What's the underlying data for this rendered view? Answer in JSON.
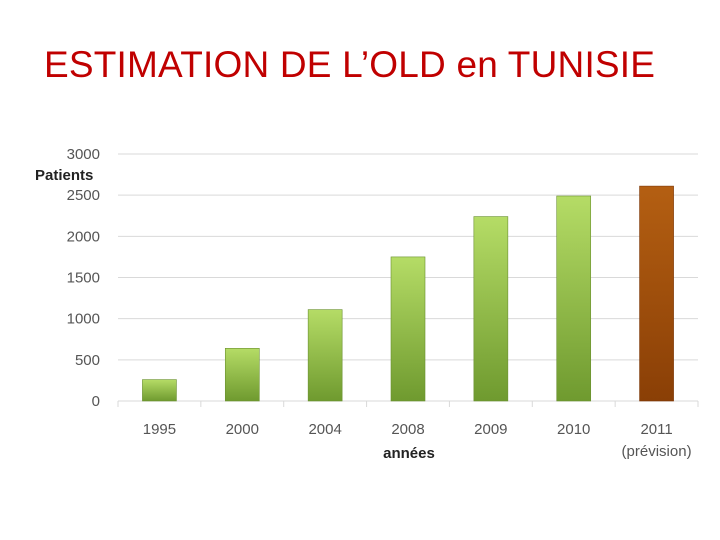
{
  "slide": {
    "title": "ESTIMATION DE L’OLD en TUNISIE"
  },
  "colors": {
    "title": "#c00000",
    "bar_green_light": "#a8d35a",
    "bar_green_dark": "#6f9a2f",
    "bar_brown_light": "#b45f12",
    "bar_brown_dark": "#8a3f06",
    "gridline": "#d9d9d9"
  },
  "chart_data": {
    "type": "bar",
    "title": "",
    "ylabel": "Patients",
    "xlabel": "années",
    "ylim": [
      0,
      3000
    ],
    "yticks": [
      0,
      500,
      1000,
      1500,
      2000,
      2500,
      3000
    ],
    "grid": true,
    "categories": [
      "1995",
      "2000",
      "2004",
      "2008",
      "2009",
      "2010",
      "2011"
    ],
    "category_sublabels": [
      "",
      "",
      "",
      "",
      "",
      "",
      "(prévision)"
    ],
    "values": [
      260,
      640,
      1110,
      1750,
      2240,
      2490,
      2610
    ],
    "bar_colors": [
      "green",
      "green",
      "green",
      "green",
      "green",
      "green",
      "brown"
    ]
  }
}
